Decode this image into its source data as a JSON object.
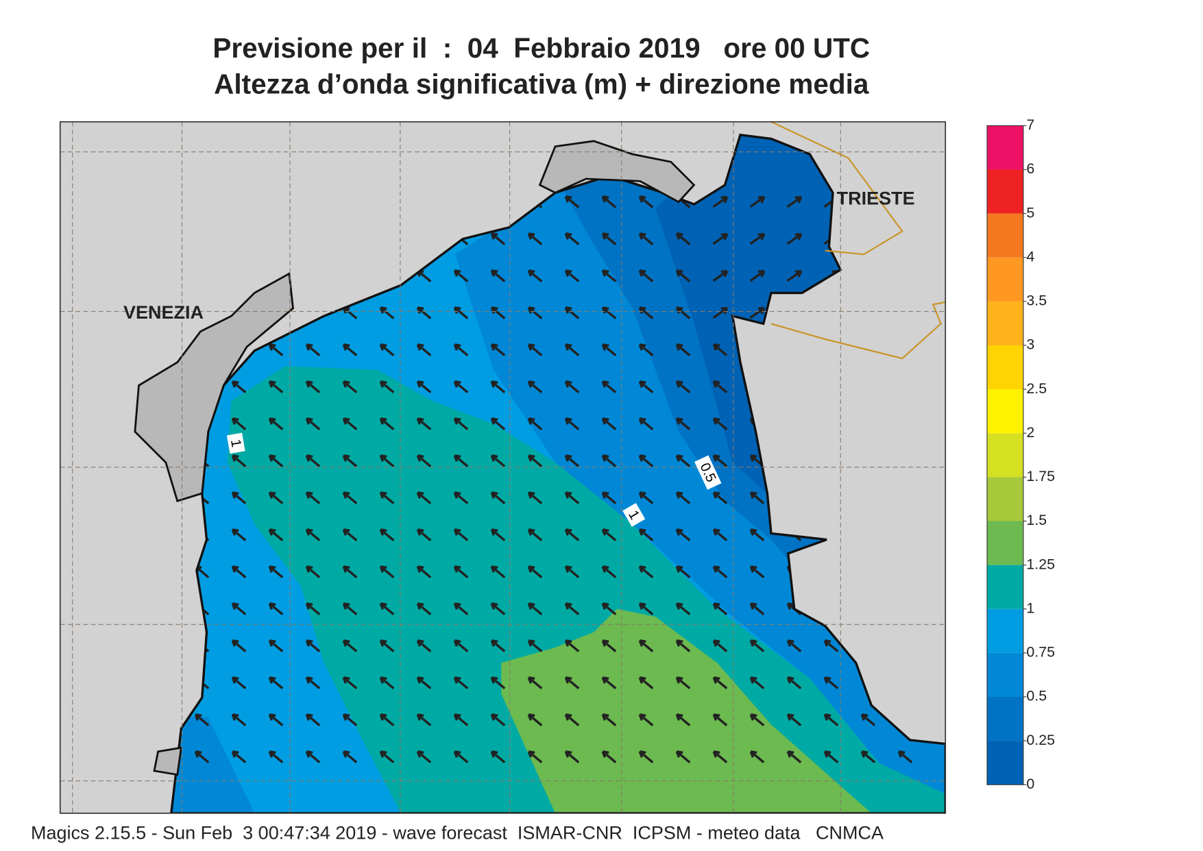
{
  "title": {
    "line1": "Previsione per il  :  04  Febbraio 2019   ore 00 UTC",
    "line2": "Altezza d’onda significativa (m) + direzione media"
  },
  "map": {
    "cities": [
      "VENEZIA",
      "TRIESTE"
    ],
    "contour_labels": [
      1,
      0.5,
      1
    ]
  },
  "colorbar": {
    "levels": [
      0,
      0.25,
      0.5,
      0.75,
      1,
      1.25,
      1.5,
      1.75,
      2,
      2.5,
      3,
      3.5,
      4,
      5,
      6,
      7
    ],
    "colors": [
      "#0062b4",
      "#0073c4",
      "#0088d6",
      "#009de2",
      "#00aaa4",
      "#6cba50",
      "#a6c83a",
      "#d4e020",
      "#fff200",
      "#ffd400",
      "#ffb21a",
      "#ff9822",
      "#f47820",
      "#ee2222",
      "#ee1166"
    ]
  },
  "footer": "Magics 2.15.5 - Sun Feb  3 00:47:34 2019 - wave forecast  ISMAR-CNR  ICPSM - meteo data   CNMCA"
}
